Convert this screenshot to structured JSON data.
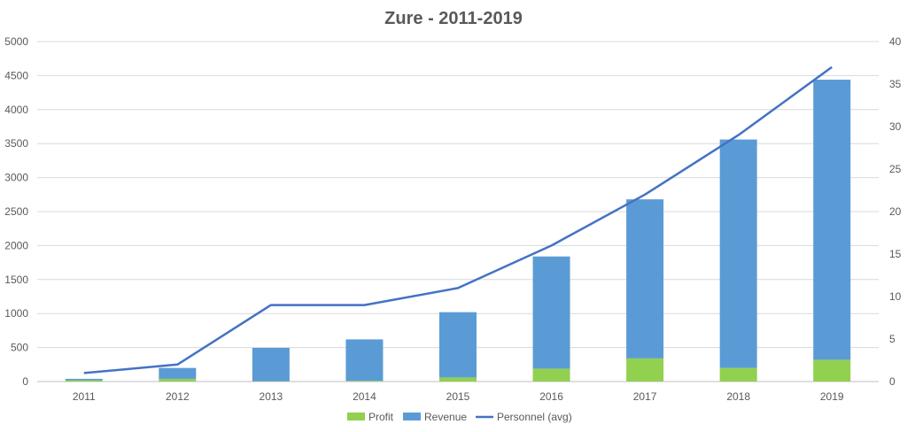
{
  "chart_data": {
    "type": "bar",
    "title": "Zure - 2011-2019",
    "categories": [
      "2011",
      "2012",
      "2013",
      "2014",
      "2015",
      "2016",
      "2017",
      "2018",
      "2019"
    ],
    "series": [
      {
        "name": "Profit",
        "kind": "bar-stacked",
        "axis": "left",
        "color": "#92d050",
        "values": [
          20,
          40,
          5,
          10,
          60,
          190,
          340,
          200,
          320
        ]
      },
      {
        "name": "Revenue",
        "kind": "bar-stacked",
        "axis": "left",
        "color": "#5b9bd5",
        "values": [
          20,
          160,
          490,
          610,
          960,
          1650,
          2340,
          3360,
          4120
        ]
      },
      {
        "name": "Personnel (avg)",
        "kind": "line",
        "axis": "right",
        "color": "#4472c4",
        "values": [
          1,
          2,
          9,
          9,
          11,
          16,
          22,
          29,
          37
        ]
      }
    ],
    "y_left": {
      "min": 0,
      "max": 5000,
      "step": 500,
      "ticks": [
        "0",
        "500",
        "1000",
        "1500",
        "2000",
        "2500",
        "3000",
        "3500",
        "4000",
        "4500",
        "5000"
      ]
    },
    "y_right": {
      "min": 0,
      "max": 40,
      "step": 5,
      "ticks": [
        "0",
        "5",
        "10",
        "15",
        "20",
        "25",
        "30",
        "35",
        "40"
      ]
    },
    "grid": true,
    "legend_position": "bottom"
  }
}
